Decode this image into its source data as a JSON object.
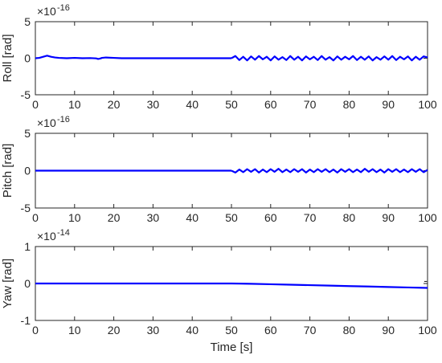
{
  "chart_data": [
    {
      "type": "line",
      "ylabel": "Roll [rad]",
      "xlabel": "",
      "exponent_base": "×10",
      "exponent": "-16",
      "xlim": [
        0,
        100
      ],
      "ylim": [
        -5,
        5
      ],
      "xticks": [
        "0",
        "10",
        "20",
        "30",
        "40",
        "50",
        "60",
        "70",
        "80",
        "90",
        "100"
      ],
      "yticks": [
        "-5",
        "0",
        "5"
      ],
      "line_color": "#0000ff",
      "grid": false,
      "series": [
        {
          "x": [
            0,
            1,
            2,
            3,
            4,
            5,
            6,
            8,
            10,
            12,
            14,
            15.5,
            16,
            16.5,
            17,
            18,
            20,
            22,
            25,
            30,
            35,
            40,
            45,
            50
          ],
          "values": [
            0,
            0.05,
            0.2,
            0.35,
            0.2,
            0.1,
            0.05,
            0.0,
            0.05,
            0.0,
            0.02,
            -0.02,
            -0.1,
            -0.05,
            0.05,
            0.1,
            0.05,
            0.0,
            0.0,
            0.0,
            0.0,
            0.0,
            0.0,
            0.0
          ]
        },
        {
          "x": [
            50,
            51,
            52,
            53,
            54,
            55,
            56,
            57,
            58,
            59,
            60,
            61,
            62,
            63,
            64,
            65,
            66,
            67,
            68,
            69,
            70,
            71,
            72,
            73,
            74,
            75,
            76,
            77,
            78,
            79,
            80,
            81,
            82,
            83,
            84,
            85,
            86,
            87,
            88,
            89,
            90,
            91,
            92,
            93,
            94,
            95,
            96,
            97,
            98,
            99,
            100
          ],
          "values": [
            0.0,
            0.3,
            -0.25,
            0.2,
            -0.3,
            0.25,
            -0.2,
            0.3,
            -0.15,
            0.2,
            -0.3,
            0.25,
            -0.2,
            0.15,
            -0.25,
            0.3,
            -0.2,
            0.2,
            -0.3,
            0.25,
            -0.15,
            0.2,
            -0.25,
            0.3,
            -0.2,
            0.15,
            -0.3,
            0.25,
            -0.2,
            0.2,
            -0.15,
            0.3,
            -0.25,
            0.2,
            -0.2,
            0.25,
            -0.3,
            0.15,
            -0.2,
            0.25,
            -0.2,
            0.3,
            -0.25,
            0.2,
            -0.15,
            0.25,
            -0.3,
            0.2,
            -0.2,
            0.25,
            0.1
          ]
        }
      ]
    },
    {
      "type": "line",
      "ylabel": "Pitch [rad]",
      "xlabel": "",
      "exponent_base": "×10",
      "exponent": "-16",
      "xlim": [
        0,
        100
      ],
      "ylim": [
        -5,
        5
      ],
      "xticks": [
        "0",
        "10",
        "20",
        "30",
        "40",
        "50",
        "60",
        "70",
        "80",
        "90",
        "100"
      ],
      "yticks": [
        "-5",
        "0",
        "5"
      ],
      "line_color": "#0000ff",
      "grid": false,
      "series": [
        {
          "x": [
            0,
            50
          ],
          "values": [
            0,
            0
          ]
        },
        {
          "x": [
            50,
            51,
            52,
            53,
            54,
            55,
            56,
            57,
            58,
            59,
            60,
            61,
            62,
            63,
            64,
            65,
            66,
            67,
            68,
            69,
            70,
            71,
            72,
            73,
            74,
            75,
            76,
            77,
            78,
            79,
            80,
            81,
            82,
            83,
            84,
            85,
            86,
            87,
            88,
            89,
            90,
            91,
            92,
            93,
            94,
            95,
            96,
            97,
            98,
            99,
            100
          ],
          "values": [
            0,
            -0.25,
            0.15,
            -0.2,
            0.2,
            -0.15,
            0.2,
            -0.25,
            0.15,
            -0.2,
            0.2,
            -0.15,
            0.25,
            -0.2,
            0.15,
            -0.2,
            0.2,
            -0.15,
            0.2,
            -0.25,
            0.15,
            -0.2,
            0.2,
            -0.15,
            0.2,
            -0.2,
            0.15,
            -0.25,
            0.2,
            -0.15,
            0.2,
            -0.2,
            0.15,
            -0.2,
            0.25,
            -0.15,
            0.2,
            -0.2,
            0.15,
            -0.25,
            0.2,
            -0.15,
            0.2,
            -0.2,
            0.15,
            -0.2,
            0.2,
            -0.15,
            0.2,
            -0.2,
            0.1
          ]
        }
      ]
    },
    {
      "type": "line",
      "ylabel": "Yaw [rad]",
      "xlabel": "Time [s]",
      "exponent_base": "×10",
      "exponent": "-14",
      "xlim": [
        0,
        100
      ],
      "ylim": [
        -1,
        1
      ],
      "xticks": [
        "0",
        "10",
        "20",
        "30",
        "40",
        "50",
        "60",
        "70",
        "80",
        "90",
        "100"
      ],
      "yticks": [
        "-1",
        "0",
        "1"
      ],
      "line_color": "#0000ff",
      "grid": false,
      "series": [
        {
          "x": [
            0,
            10,
            20,
            30,
            40,
            50,
            52,
            55,
            60,
            65,
            70,
            75,
            80,
            85,
            90,
            95,
            100
          ],
          "values": [
            0,
            0,
            0,
            0,
            0,
            0,
            -0.002,
            -0.008,
            -0.02,
            -0.032,
            -0.045,
            -0.057,
            -0.07,
            -0.082,
            -0.095,
            -0.107,
            -0.12
          ]
        }
      ],
      "annotations": [
        {
          "text": "-",
          "x": 99.5,
          "y": 0.0
        }
      ]
    }
  ]
}
